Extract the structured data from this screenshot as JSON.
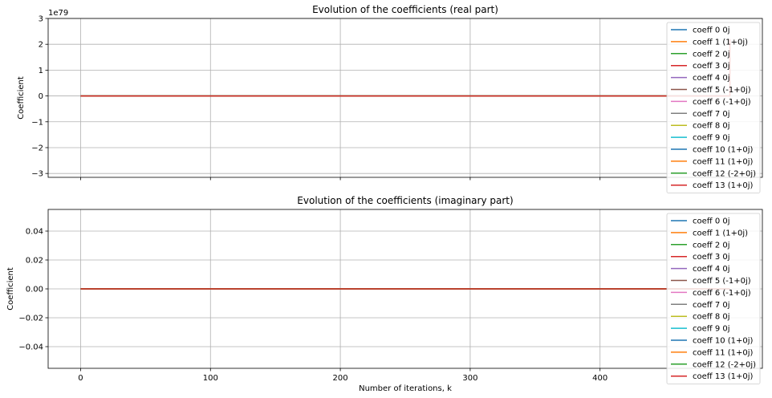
{
  "chart_data": [
    {
      "type": "line",
      "title": "Evolution of the coefficients (real part)",
      "xlabel": "",
      "ylabel": "Coefficient",
      "offset_text": "1e79",
      "xlim": [
        -25,
        525
      ],
      "ylim": [
        -3.15,
        3.0
      ],
      "x_ticks": [
        0,
        100,
        200,
        300,
        400
      ],
      "x_tick_labels": [
        "",
        "",
        "",
        "",
        ""
      ],
      "y_ticks": [
        -3,
        -2,
        -1,
        0,
        1,
        2,
        3
      ],
      "y_tick_labels": [
        "−3",
        "−2",
        "−1",
        "0",
        "1",
        "2",
        "3"
      ],
      "grid": true,
      "legend_position": "upper-right",
      "x_range": [
        0,
        500
      ],
      "series_final_spike": [
        {
          "index": 1,
          "end_value": 1.9
        },
        {
          "index": 13,
          "end_value": 2.2
        }
      ],
      "series": [
        {
          "name": "coeff 0 0j",
          "color": "#1f77b4",
          "values": [
            0,
            0
          ]
        },
        {
          "name": "coeff 1 (1+0j)",
          "color": "#ff7f0e",
          "values": [
            0,
            0
          ]
        },
        {
          "name": "coeff 2 0j",
          "color": "#2ca02c",
          "values": [
            0,
            0
          ]
        },
        {
          "name": "coeff 3 0j",
          "color": "#d62728",
          "values": [
            0,
            0
          ]
        },
        {
          "name": "coeff 4 0j",
          "color": "#9467bd",
          "values": [
            0,
            0
          ]
        },
        {
          "name": "coeff 5 (-1+0j)",
          "color": "#8c564b",
          "values": [
            0,
            0
          ]
        },
        {
          "name": "coeff 6 (-1+0j)",
          "color": "#e377c2",
          "values": [
            0,
            0
          ]
        },
        {
          "name": "coeff 7 0j",
          "color": "#7f7f7f",
          "values": [
            0,
            0
          ]
        },
        {
          "name": "coeff 8 0j",
          "color": "#bcbd22",
          "values": [
            0,
            0
          ]
        },
        {
          "name": "coeff 9 0j",
          "color": "#17becf",
          "values": [
            0,
            0
          ]
        },
        {
          "name": "coeff 10 (1+0j)",
          "color": "#1f77b4",
          "values": [
            0,
            0
          ]
        },
        {
          "name": "coeff 11 (1+0j)",
          "color": "#ff7f0e",
          "values": [
            0,
            0
          ]
        },
        {
          "name": "coeff 12 (-2+0j)",
          "color": "#2ca02c",
          "values": [
            0,
            0
          ]
        },
        {
          "name": "coeff 13 (1+0j)",
          "color": "#d62728",
          "values": [
            0,
            0
          ]
        }
      ]
    },
    {
      "type": "line",
      "title": "Evolution of the coefficients (imaginary part)",
      "xlabel": "Number of iterations, k",
      "ylabel": "Coefficient",
      "offset_text": "",
      "xlim": [
        -25,
        525
      ],
      "ylim": [
        -0.055,
        0.055
      ],
      "x_ticks": [
        0,
        100,
        200,
        300,
        400
      ],
      "x_tick_labels": [
        "0",
        "100",
        "200",
        "300",
        "400"
      ],
      "y_ticks": [
        -0.04,
        -0.02,
        0.0,
        0.02,
        0.04
      ],
      "y_tick_labels": [
        "−0.04",
        "−0.02",
        "0.00",
        "0.02",
        "0.04"
      ],
      "grid": true,
      "legend_position": "upper-right",
      "x_range": [
        0,
        500
      ],
      "series": [
        {
          "name": "coeff 0 0j",
          "color": "#1f77b4",
          "values": [
            0,
            0
          ]
        },
        {
          "name": "coeff 1 (1+0j)",
          "color": "#ff7f0e",
          "values": [
            0,
            0
          ]
        },
        {
          "name": "coeff 2 0j",
          "color": "#2ca02c",
          "values": [
            0,
            0
          ]
        },
        {
          "name": "coeff 3 0j",
          "color": "#d62728",
          "values": [
            0,
            0
          ]
        },
        {
          "name": "coeff 4 0j",
          "color": "#9467bd",
          "values": [
            0,
            0
          ]
        },
        {
          "name": "coeff 5 (-1+0j)",
          "color": "#8c564b",
          "values": [
            0,
            0
          ]
        },
        {
          "name": "coeff 6 (-1+0j)",
          "color": "#e377c2",
          "values": [
            0,
            0
          ]
        },
        {
          "name": "coeff 7 0j",
          "color": "#7f7f7f",
          "values": [
            0,
            0
          ]
        },
        {
          "name": "coeff 8 0j",
          "color": "#bcbd22",
          "values": [
            0,
            0
          ]
        },
        {
          "name": "coeff 9 0j",
          "color": "#17becf",
          "values": [
            0,
            0
          ]
        },
        {
          "name": "coeff 10 (1+0j)",
          "color": "#1f77b4",
          "values": [
            0,
            0
          ]
        },
        {
          "name": "coeff 11 (1+0j)",
          "color": "#ff7f0e",
          "values": [
            0,
            0
          ]
        },
        {
          "name": "coeff 12 (-2+0j)",
          "color": "#2ca02c",
          "values": [
            0,
            0
          ]
        },
        {
          "name": "coeff 13 (1+0j)",
          "color": "#d62728",
          "values": [
            0,
            0
          ]
        }
      ]
    }
  ]
}
